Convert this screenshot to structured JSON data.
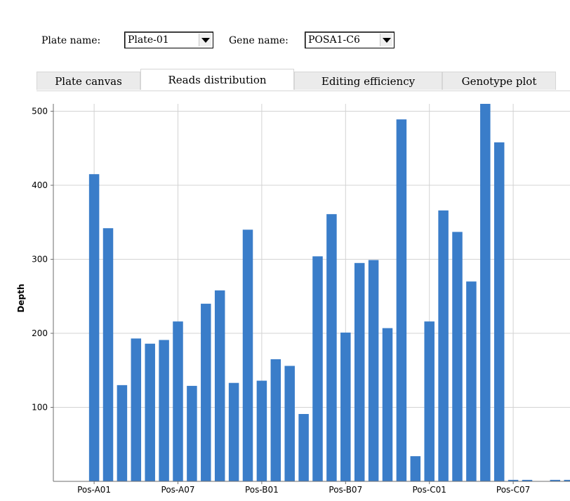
{
  "toolbar": {
    "plate_label": "Plate name:",
    "plate_value": "Plate-01",
    "gene_label": "Gene name:",
    "gene_value": "POSA1-C6"
  },
  "tabs": [
    {
      "label": "Plate canvas",
      "active": false
    },
    {
      "label": "Reads distribution",
      "active": true
    },
    {
      "label": "Editing efficiency",
      "active": false
    },
    {
      "label": "Genotype plot",
      "active": false
    }
  ],
  "colors": {
    "bar": "#3a7dc9",
    "grid": "#d3d3d3",
    "axis": "#6e6e6e"
  },
  "chart_data": {
    "type": "bar",
    "title": "",
    "xlabel": "",
    "ylabel": "Depth",
    "ylim": [
      0,
      510
    ],
    "y_ticks": [
      100,
      200,
      300,
      400,
      500
    ],
    "grid": true,
    "x_tick_labels": [
      {
        "label": "Pos-A01",
        "index": 1
      },
      {
        "label": "Pos-A07",
        "index": 7
      },
      {
        "label": "Pos-B01",
        "index": 13
      },
      {
        "label": "Pos-B07",
        "index": 19
      },
      {
        "label": "Pos-C01",
        "index": 25
      },
      {
        "label": "Pos-C07",
        "index": 31
      }
    ],
    "values": [
      0,
      415,
      342,
      130,
      193,
      186,
      191,
      216,
      129,
      240,
      258,
      133,
      340,
      136,
      165,
      156,
      91,
      304,
      361,
      201,
      295,
      299,
      207,
      489,
      34,
      216,
      366,
      337,
      270,
      513,
      458,
      2,
      2,
      0,
      2,
      2
    ]
  }
}
